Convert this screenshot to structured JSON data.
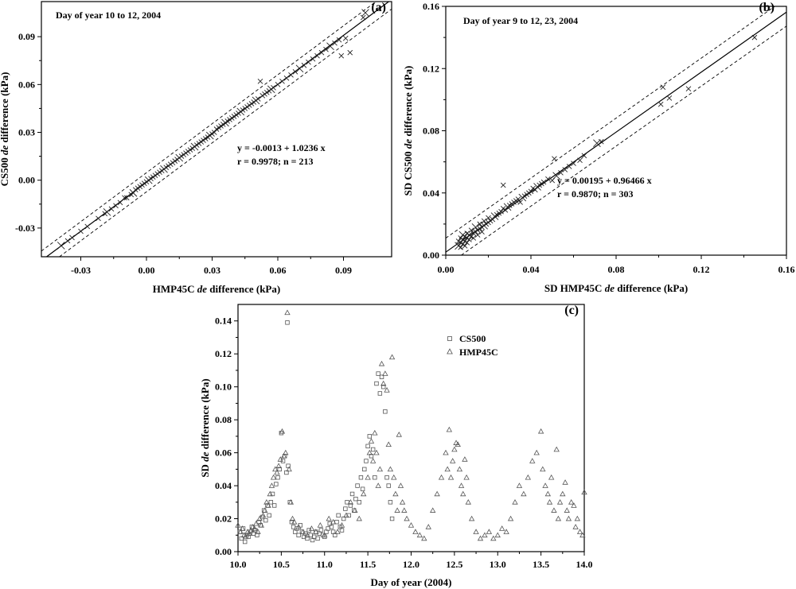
{
  "chart_data": [
    {
      "id": "a",
      "type": "scatter",
      "panel_label": "(a)",
      "annotation": "Day of year 10 to 12, 2004",
      "xlabel": "HMP45C de difference (kPa)",
      "ylabel": "CS500 de difference (kPa)",
      "xlabel_parts": [
        "HMP45C ",
        "de",
        " difference (kPa)"
      ],
      "ylabel_parts": [
        "CS500 ",
        "de",
        " difference (kPa)"
      ],
      "xlim": [
        -0.048,
        0.112
      ],
      "ylim": [
        -0.048,
        0.112
      ],
      "xticks": [
        -0.03,
        0.0,
        0.03,
        0.06,
        0.09
      ],
      "yticks": [
        -0.03,
        0.0,
        0.03,
        0.06,
        0.09
      ],
      "xtick_labels": [
        "-0.03",
        "0.00",
        "0.03",
        "0.06",
        "0.09"
      ],
      "ytick_labels": [
        "-0.03",
        "0.00",
        "0.03",
        "0.06",
        "0.09"
      ],
      "regression": {
        "intercept": -0.0013,
        "slope": 1.0236
      },
      "confidence_offset": 0.006,
      "equation": "y = -0.0013 + 1.0236 x",
      "stats": "r = 0.9978; n = 213",
      "points": {
        "x": [
          -0.039,
          -0.036,
          -0.034,
          -0.03,
          -0.027,
          -0.022,
          -0.019,
          -0.018,
          -0.016,
          -0.014,
          -0.012,
          -0.01,
          -0.009,
          -0.007,
          -0.006,
          -0.005,
          -0.004,
          -0.003,
          -0.002,
          -0.001,
          0.0,
          0.001,
          0.002,
          0.003,
          0.004,
          0.005,
          0.006,
          0.007,
          0.008,
          0.009,
          0.01,
          0.011,
          0.012,
          0.013,
          0.014,
          0.015,
          0.016,
          0.017,
          0.018,
          0.019,
          0.02,
          0.021,
          0.022,
          0.023,
          0.024,
          0.025,
          0.026,
          0.027,
          0.028,
          0.029,
          0.03,
          0.031,
          0.032,
          0.033,
          0.034,
          0.035,
          0.036,
          0.037,
          0.038,
          0.039,
          0.04,
          0.041,
          0.042,
          0.043,
          0.044,
          0.045,
          0.046,
          0.047,
          0.048,
          0.049,
          0.05,
          0.051,
          0.052,
          0.053,
          0.054,
          0.055,
          0.056,
          0.057,
          0.058,
          0.06,
          0.062,
          0.064,
          0.066,
          0.068,
          0.07,
          0.072,
          0.074,
          0.076,
          0.078,
          0.08,
          0.082,
          0.084,
          0.086,
          0.088,
          0.089,
          0.091,
          0.093,
          0.099,
          0.1
        ],
        "y": [
          -0.041,
          -0.038,
          -0.036,
          -0.032,
          -0.029,
          -0.024,
          -0.021,
          -0.02,
          -0.018,
          -0.016,
          -0.014,
          -0.011,
          -0.011,
          -0.009,
          -0.008,
          -0.006,
          -0.005,
          -0.004,
          -0.003,
          -0.002,
          -0.001,
          0.0,
          0.001,
          0.002,
          0.003,
          0.004,
          0.005,
          0.006,
          0.007,
          0.008,
          0.009,
          0.01,
          0.011,
          0.012,
          0.013,
          0.014,
          0.015,
          0.016,
          0.017,
          0.018,
          0.019,
          0.02,
          0.021,
          0.022,
          0.023,
          0.024,
          0.025,
          0.026,
          0.027,
          0.028,
          0.029,
          0.03,
          0.032,
          0.033,
          0.034,
          0.035,
          0.036,
          0.037,
          0.038,
          0.039,
          0.04,
          0.041,
          0.042,
          0.043,
          0.044,
          0.045,
          0.046,
          0.047,
          0.048,
          0.049,
          0.05,
          0.051,
          0.062,
          0.053,
          0.054,
          0.055,
          0.056,
          0.057,
          0.058,
          0.06,
          0.062,
          0.064,
          0.066,
          0.068,
          0.07,
          0.072,
          0.074,
          0.076,
          0.078,
          0.08,
          0.082,
          0.084,
          0.086,
          0.088,
          0.078,
          0.089,
          0.08,
          0.102,
          0.105
        ]
      }
    },
    {
      "id": "b",
      "type": "scatter",
      "panel_label": "(b)",
      "annotation": "Day of year 9 to 12, 23, 2004",
      "xlabel": "SD HMP45C de difference (kPa)",
      "ylabel": "SD CS500 de difference (kPa)",
      "xlabel_parts": [
        "SD HMP45C ",
        "de",
        " difference (kPa)"
      ],
      "ylabel_parts": [
        "SD CS500 ",
        "de",
        " difference (kPa)"
      ],
      "xlim": [
        0.0,
        0.16
      ],
      "ylim": [
        0.0,
        0.16
      ],
      "xticks": [
        0.0,
        0.04,
        0.08,
        0.12,
        0.16
      ],
      "yticks": [
        0.0,
        0.04,
        0.08,
        0.12,
        0.16
      ],
      "xtick_labels": [
        "0.00",
        "0.04",
        "0.08",
        "0.12",
        "0.16"
      ],
      "ytick_labels": [
        "0.00",
        "0.04",
        "0.08",
        "0.12",
        "0.16"
      ],
      "regression": {
        "intercept": 0.00195,
        "slope": 0.96466
      },
      "confidence_offset": 0.009,
      "equation": "y = 0.00195 + 0.96466 x",
      "stats": "r = 0.9870; n = 303",
      "points": {
        "x": [
          0.006,
          0.006,
          0.007,
          0.007,
          0.007,
          0.008,
          0.008,
          0.008,
          0.009,
          0.009,
          0.009,
          0.01,
          0.01,
          0.01,
          0.011,
          0.011,
          0.012,
          0.012,
          0.013,
          0.013,
          0.014,
          0.014,
          0.015,
          0.015,
          0.016,
          0.016,
          0.017,
          0.017,
          0.018,
          0.018,
          0.019,
          0.02,
          0.02,
          0.021,
          0.022,
          0.023,
          0.024,
          0.025,
          0.026,
          0.027,
          0.027,
          0.028,
          0.029,
          0.03,
          0.031,
          0.032,
          0.033,
          0.034,
          0.035,
          0.036,
          0.037,
          0.038,
          0.039,
          0.04,
          0.041,
          0.042,
          0.043,
          0.044,
          0.045,
          0.046,
          0.048,
          0.05,
          0.051,
          0.052,
          0.054,
          0.056,
          0.058,
          0.06,
          0.063,
          0.065,
          0.071,
          0.073,
          0.101,
          0.102,
          0.105,
          0.114,
          0.145
        ],
        "y": [
          0.006,
          0.009,
          0.005,
          0.008,
          0.011,
          0.007,
          0.01,
          0.013,
          0.009,
          0.012,
          0.006,
          0.011,
          0.014,
          0.008,
          0.013,
          0.01,
          0.012,
          0.016,
          0.014,
          0.011,
          0.015,
          0.018,
          0.016,
          0.013,
          0.017,
          0.02,
          0.018,
          0.015,
          0.019,
          0.022,
          0.02,
          0.021,
          0.024,
          0.022,
          0.023,
          0.025,
          0.026,
          0.027,
          0.028,
          0.03,
          0.045,
          0.029,
          0.031,
          0.032,
          0.033,
          0.034,
          0.035,
          0.036,
          0.034,
          0.037,
          0.038,
          0.039,
          0.04,
          0.041,
          0.043,
          0.042,
          0.044,
          0.045,
          0.046,
          0.047,
          0.049,
          0.048,
          0.062,
          0.051,
          0.053,
          0.055,
          0.057,
          0.059,
          0.061,
          0.064,
          0.072,
          0.073,
          0.097,
          0.108,
          0.101,
          0.107,
          0.14
        ]
      }
    },
    {
      "id": "c",
      "type": "scatter",
      "panel_label": "(c)",
      "xlabel": "Day of year (2004)",
      "ylabel": "SD de difference (kPa)",
      "xlabel_parts": [
        "Day of year (2004)"
      ],
      "ylabel_parts": [
        "SD ",
        "de",
        " difference (kPa)"
      ],
      "xlim": [
        10.0,
        14.0
      ],
      "ylim": [
        0.0,
        0.15
      ],
      "xticks": [
        10.0,
        10.5,
        11.0,
        11.5,
        12.0,
        12.5,
        13.0,
        13.5,
        14.0
      ],
      "yticks": [
        0.0,
        0.02,
        0.04,
        0.06,
        0.08,
        0.1,
        0.12,
        0.14
      ],
      "xtick_labels": [
        "10.0",
        "10.5",
        "11.0",
        "11.5",
        "12.0",
        "12.5",
        "13.0",
        "13.5",
        "14.0"
      ],
      "ytick_labels": [
        "0.00",
        "0.02",
        "0.04",
        "0.06",
        "0.08",
        "0.10",
        "0.12",
        "0.14"
      ],
      "legend": [
        "CS500",
        "HMP45C"
      ],
      "legend_position": "upper-center",
      "series": [
        {
          "name": "CS500",
          "marker": "square",
          "x": [
            10.02,
            10.04,
            10.06,
            10.08,
            10.1,
            10.12,
            10.14,
            10.16,
            10.18,
            10.2,
            10.22,
            10.24,
            10.26,
            10.28,
            10.3,
            10.32,
            10.34,
            10.36,
            10.38,
            10.4,
            10.42,
            10.44,
            10.46,
            10.48,
            10.5,
            10.52,
            10.54,
            10.56,
            10.57,
            10.58,
            10.6,
            10.62,
            10.64,
            10.66,
            10.68,
            10.7,
            10.72,
            10.74,
            10.76,
            10.78,
            10.8,
            10.82,
            10.84,
            10.86,
            10.88,
            10.9,
            10.92,
            10.94,
            10.96,
            10.98,
            11.0,
            11.02,
            11.04,
            11.06,
            11.08,
            11.1,
            11.12,
            11.14,
            11.16,
            11.18,
            11.2,
            11.22,
            11.24,
            11.26,
            11.28,
            11.3,
            11.32,
            11.34,
            11.36,
            11.38,
            11.4,
            11.42,
            11.44,
            11.46,
            11.48,
            11.5,
            11.52,
            11.54,
            11.56,
            11.58,
            11.6,
            11.62,
            11.64,
            11.66,
            11.68,
            11.7,
            11.72,
            11.74,
            11.76,
            11.78
          ],
          "y": [
            0.012,
            0.008,
            0.014,
            0.006,
            0.01,
            0.009,
            0.012,
            0.015,
            0.011,
            0.013,
            0.01,
            0.018,
            0.016,
            0.021,
            0.025,
            0.019,
            0.028,
            0.022,
            0.03,
            0.035,
            0.028,
            0.041,
            0.045,
            0.05,
            0.072,
            0.055,
            0.058,
            0.048,
            0.139,
            0.052,
            0.03,
            0.018,
            0.015,
            0.012,
            0.014,
            0.01,
            0.016,
            0.012,
            0.009,
            0.011,
            0.008,
            0.013,
            0.01,
            0.007,
            0.009,
            0.012,
            0.008,
            0.011,
            0.013,
            0.01,
            0.009,
            0.012,
            0.014,
            0.017,
            0.015,
            0.012,
            0.01,
            0.018,
            0.022,
            0.015,
            0.013,
            0.02,
            0.026,
            0.03,
            0.022,
            0.028,
            0.035,
            0.025,
            0.032,
            0.04,
            0.03,
            0.045,
            0.038,
            0.05,
            0.055,
            0.064,
            0.07,
            0.058,
            0.062,
            0.045,
            0.102,
            0.108,
            0.096,
            0.106,
            0.1,
            0.085,
            0.045,
            0.04,
            0.03,
            0.02
          ]
        },
        {
          "name": "HMP45C",
          "marker": "triangle",
          "x": [
            10.0,
            10.03,
            10.05,
            10.07,
            10.09,
            10.11,
            10.13,
            10.15,
            10.17,
            10.19,
            10.21,
            10.23,
            10.25,
            10.27,
            10.29,
            10.31,
            10.33,
            10.35,
            10.37,
            10.39,
            10.41,
            10.43,
            10.45,
            10.47,
            10.49,
            10.51,
            10.53,
            10.55,
            10.57,
            10.59,
            10.61,
            10.63,
            10.65,
            10.7,
            10.75,
            10.8,
            10.85,
            10.9,
            10.95,
            11.0,
            11.05,
            11.1,
            11.15,
            11.2,
            11.25,
            11.3,
            11.35,
            11.4,
            11.45,
            11.5,
            11.52,
            11.54,
            11.56,
            11.58,
            11.6,
            11.62,
            11.64,
            11.66,
            11.68,
            11.7,
            11.72,
            11.74,
            11.76,
            11.78,
            11.8,
            11.82,
            11.84,
            11.86,
            11.88,
            11.9,
            11.92,
            11.95,
            12.0,
            12.05,
            12.1,
            12.15,
            12.2,
            12.25,
            12.3,
            12.35,
            12.4,
            12.42,
            12.44,
            12.46,
            12.48,
            12.5,
            12.52,
            12.54,
            12.56,
            12.58,
            12.6,
            12.62,
            12.64,
            12.66,
            12.7,
            12.75,
            12.8,
            12.85,
            12.9,
            12.95,
            13.0,
            13.05,
            13.1,
            13.15,
            13.2,
            13.25,
            13.3,
            13.35,
            13.4,
            13.45,
            13.5,
            13.52,
            13.55,
            13.58,
            13.6,
            13.62,
            13.65,
            13.68,
            13.7,
            13.72,
            13.75,
            13.78,
            13.8,
            13.82,
            13.85,
            13.88,
            13.9,
            13.92,
            13.95,
            13.98,
            14.0
          ],
          "y": [
            0.016,
            0.012,
            0.014,
            0.01,
            0.009,
            0.012,
            0.011,
            0.013,
            0.015,
            0.014,
            0.017,
            0.012,
            0.02,
            0.016,
            0.022,
            0.025,
            0.03,
            0.028,
            0.035,
            0.04,
            0.045,
            0.05,
            0.048,
            0.052,
            0.056,
            0.073,
            0.058,
            0.06,
            0.145,
            0.05,
            0.03,
            0.02,
            0.018,
            0.015,
            0.012,
            0.01,
            0.014,
            0.012,
            0.016,
            0.01,
            0.02,
            0.018,
            0.012,
            0.016,
            0.022,
            0.03,
            0.025,
            0.02,
            0.035,
            0.045,
            0.06,
            0.067,
            0.055,
            0.072,
            0.06,
            0.04,
            0.05,
            0.114,
            0.102,
            0.108,
            0.098,
            0.065,
            0.05,
            0.118,
            0.045,
            0.035,
            0.025,
            0.071,
            0.04,
            0.03,
            0.025,
            0.02,
            0.016,
            0.012,
            0.01,
            0.008,
            0.015,
            0.025,
            0.035,
            0.045,
            0.06,
            0.05,
            0.074,
            0.045,
            0.055,
            0.062,
            0.066,
            0.065,
            0.05,
            0.04,
            0.035,
            0.056,
            0.045,
            0.03,
            0.02,
            0.012,
            0.008,
            0.01,
            0.012,
            0.008,
            0.01,
            0.014,
            0.012,
            0.02,
            0.03,
            0.04,
            0.035,
            0.045,
            0.055,
            0.06,
            0.073,
            0.05,
            0.04,
            0.035,
            0.03,
            0.045,
            0.025,
            0.062,
            0.02,
            0.03,
            0.035,
            0.042,
            0.025,
            0.02,
            0.03,
            0.028,
            0.015,
            0.02,
            0.012,
            0.01,
            0.036
          ]
        }
      ]
    }
  ]
}
